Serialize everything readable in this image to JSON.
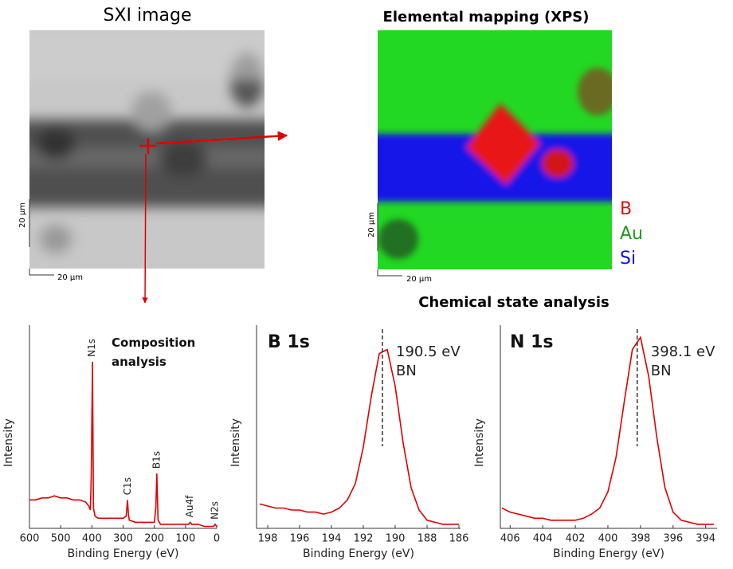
{
  "images": [
    {
      "title": "SXI image",
      "scale_x": "20 μm",
      "scale_y": "20 μm"
    },
    {
      "title": "Elemental mapping (XPS)",
      "scale_x": "20 μm",
      "scale_y": "20 μm",
      "legend": [
        {
          "name": "B",
          "color": "#e01010"
        },
        {
          "name": "Au",
          "color": "#1a9a1a"
        },
        {
          "name": "Si",
          "color": "#1010e0"
        }
      ]
    }
  ],
  "section_title": "Chemical state analysis",
  "chart_data": [
    {
      "type": "line",
      "title": "Composition analysis",
      "x_label": "Binding Energy (eV)",
      "y_label": "Intensity",
      "color": "#e00000",
      "x": [
        600,
        580,
        560,
        540,
        520,
        500,
        480,
        460,
        440,
        420,
        410,
        405,
        402,
        398,
        395,
        390,
        380,
        360,
        340,
        320,
        300,
        290,
        286,
        283,
        280,
        260,
        240,
        220,
        200,
        195,
        192,
        188,
        180,
        160,
        140,
        120,
        100,
        90,
        85,
        80,
        60,
        40,
        20,
        10,
        5,
        0
      ],
      "values": [
        14,
        14,
        15,
        15,
        16,
        15,
        15,
        14,
        14,
        13,
        11,
        9,
        25,
        82,
        10,
        6,
        5,
        5,
        5,
        5,
        5,
        6,
        14,
        7,
        4,
        3,
        3,
        3,
        3,
        10,
        27,
        4,
        2,
        2,
        2,
        2,
        2,
        2,
        3,
        2,
        2,
        1,
        1,
        1,
        2,
        1
      ],
      "xlim": [
        600,
        0
      ],
      "ylim": [
        0,
        100
      ],
      "xticks": [
        600,
        500,
        400,
        300,
        200,
        100,
        0
      ],
      "annotations": [
        {
          "text": "N1s",
          "x": 400
        },
        {
          "text": "C1s",
          "x": 285
        },
        {
          "text": "B1s",
          "x": 192
        },
        {
          "text": "Au4f",
          "x": 85
        },
        {
          "text": "N2s",
          "x": 5
        }
      ]
    },
    {
      "type": "line",
      "title": "B 1s",
      "x_label": "Binding Energy (eV)",
      "y_label": "Intensity",
      "color": "#e00000",
      "x": [
        198.5,
        198,
        197.5,
        197,
        196.5,
        196,
        195.5,
        195,
        194.5,
        194,
        193.5,
        193,
        192.5,
        192,
        191.5,
        191,
        190.5,
        190,
        189.5,
        189,
        188.5,
        188,
        187.5,
        187,
        186.5,
        186
      ],
      "values": [
        12,
        11,
        10,
        10,
        9,
        9,
        8,
        8,
        7,
        8,
        10,
        14,
        22,
        40,
        65,
        86,
        88,
        70,
        42,
        20,
        9,
        4,
        3,
        2,
        2,
        2
      ],
      "xlim": [
        198.7,
        185.9
      ],
      "ylim": [
        0,
        100
      ],
      "xticks": [
        198,
        196,
        194,
        192,
        190,
        188,
        186
      ],
      "peak_line": 190.8,
      "peak_text": [
        "190.5 eV",
        "BN"
      ]
    },
    {
      "type": "line",
      "title": "N 1s",
      "x_label": "Binding Energy (eV)",
      "y_label": "Intensity",
      "color": "#e00000",
      "x": [
        406.5,
        406,
        405.5,
        405,
        404.5,
        404,
        403.5,
        403,
        402.5,
        402,
        401.5,
        401,
        400.5,
        400,
        399.5,
        399,
        398.5,
        398,
        397.5,
        397,
        396.5,
        396,
        395.5,
        395,
        394.5,
        394,
        393.5
      ],
      "values": [
        10,
        8,
        7,
        6,
        5,
        5,
        4,
        4,
        4,
        4,
        5,
        7,
        10,
        18,
        35,
        62,
        88,
        94,
        75,
        45,
        20,
        8,
        4,
        3,
        2,
        2,
        2
      ],
      "xlim": [
        406.6,
        393.3
      ],
      "ylim": [
        0,
        100
      ],
      "xticks": [
        406,
        404,
        402,
        400,
        398,
        396,
        394
      ],
      "peak_line": 398.2,
      "peak_text": [
        "398.1 eV",
        "BN"
      ]
    }
  ]
}
